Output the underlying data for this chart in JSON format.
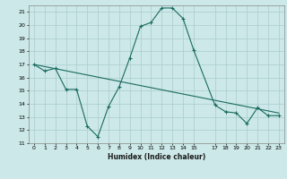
{
  "title": "",
  "xlabel": "Humidex (Indice chaleur)",
  "bg_color": "#cce8e8",
  "grid_color": "#aacccc",
  "line_color": "#1a6b5e",
  "ylim": [
    11,
    21.5
  ],
  "xlim": [
    -0.5,
    23.5
  ],
  "yticks": [
    11,
    12,
    13,
    14,
    15,
    16,
    17,
    18,
    19,
    20,
    21
  ],
  "xticks": [
    0,
    1,
    2,
    3,
    4,
    5,
    6,
    7,
    8,
    9,
    10,
    11,
    12,
    13,
    14,
    15,
    17,
    18,
    19,
    20,
    21,
    22,
    23
  ],
  "series1_x": [
    0,
    1,
    2,
    3,
    4,
    5,
    6,
    7,
    8,
    9,
    10,
    11,
    12,
    13,
    14,
    15,
    17,
    18,
    19,
    20,
    21,
    22,
    23
  ],
  "series1_y": [
    17.0,
    16.5,
    16.7,
    15.1,
    15.1,
    12.3,
    11.5,
    13.8,
    15.3,
    17.5,
    19.9,
    20.2,
    21.3,
    21.3,
    20.5,
    18.1,
    13.9,
    13.4,
    13.3,
    12.5,
    13.7,
    13.1,
    13.1
  ],
  "series2_x": [
    0,
    23
  ],
  "series2_y": [
    17.0,
    13.3
  ]
}
